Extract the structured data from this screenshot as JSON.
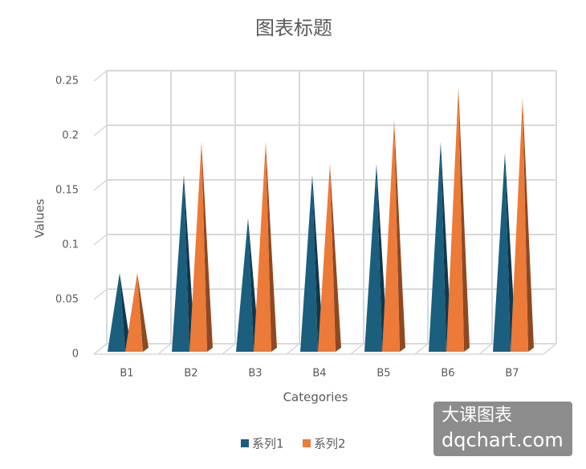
{
  "chart_data": {
    "type": "pyramid",
    "title": "图表标题",
    "x_label": "Categories",
    "y_label": "Values",
    "categories": [
      "B1",
      "B2",
      "B3",
      "B4",
      "B5",
      "B6",
      "B7"
    ],
    "series": [
      {
        "name": "系列1",
        "color": "#1b5e7e",
        "values": [
          0.07,
          0.16,
          0.12,
          0.16,
          0.17,
          0.19,
          0.18
        ]
      },
      {
        "name": "系列2",
        "color": "#ec7a38",
        "values": [
          0.07,
          0.19,
          0.19,
          0.17,
          0.21,
          0.24,
          0.23
        ]
      }
    ],
    "ylim": [
      0,
      0.25
    ],
    "yticks": [
      0,
      0.05,
      0.1,
      0.15,
      0.2,
      0.25
    ],
    "grid": true,
    "legend": "bottom"
  },
  "watermark": {
    "line1": "大课图表",
    "line2": "dqchart.com"
  }
}
